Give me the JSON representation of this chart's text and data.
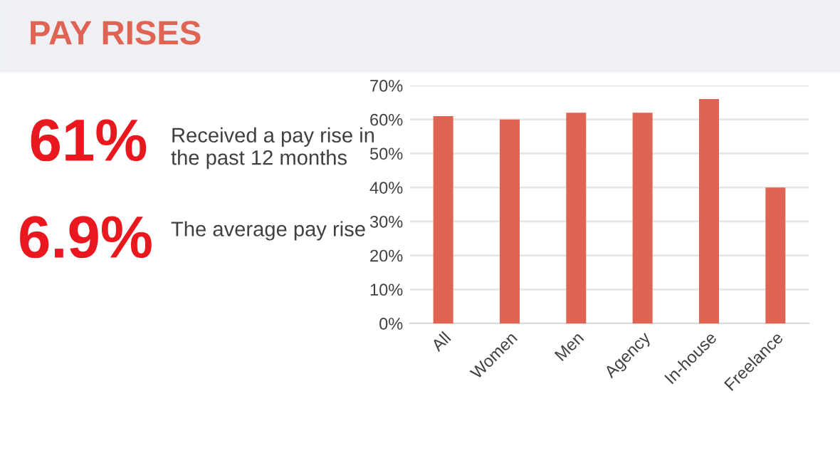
{
  "chart_data": {
    "type": "bar",
    "title": "PAY RISES",
    "annotations": [
      "61%",
      "Received a pay rise in the past 12 months",
      "6.9%",
      "The average pay rise"
    ],
    "categories": [
      "All",
      "Women",
      "Men",
      "Agency",
      "In-house",
      "Freelance"
    ],
    "values": [
      61,
      60,
      62,
      62,
      66,
      40
    ],
    "color": "#e06453",
    "ylim": [
      0,
      70
    ],
    "yticks": [
      {
        "value": 0,
        "label": "0%"
      },
      {
        "value": 10,
        "label": "10%"
      },
      {
        "value": 20,
        "label": "20%"
      },
      {
        "value": 30,
        "label": "30%"
      },
      {
        "value": 40,
        "label": "40%"
      },
      {
        "value": 50,
        "label": "50%"
      },
      {
        "value": 60,
        "label": "60%"
      },
      {
        "value": 70,
        "label": "70%"
      }
    ],
    "grid": "y"
  }
}
